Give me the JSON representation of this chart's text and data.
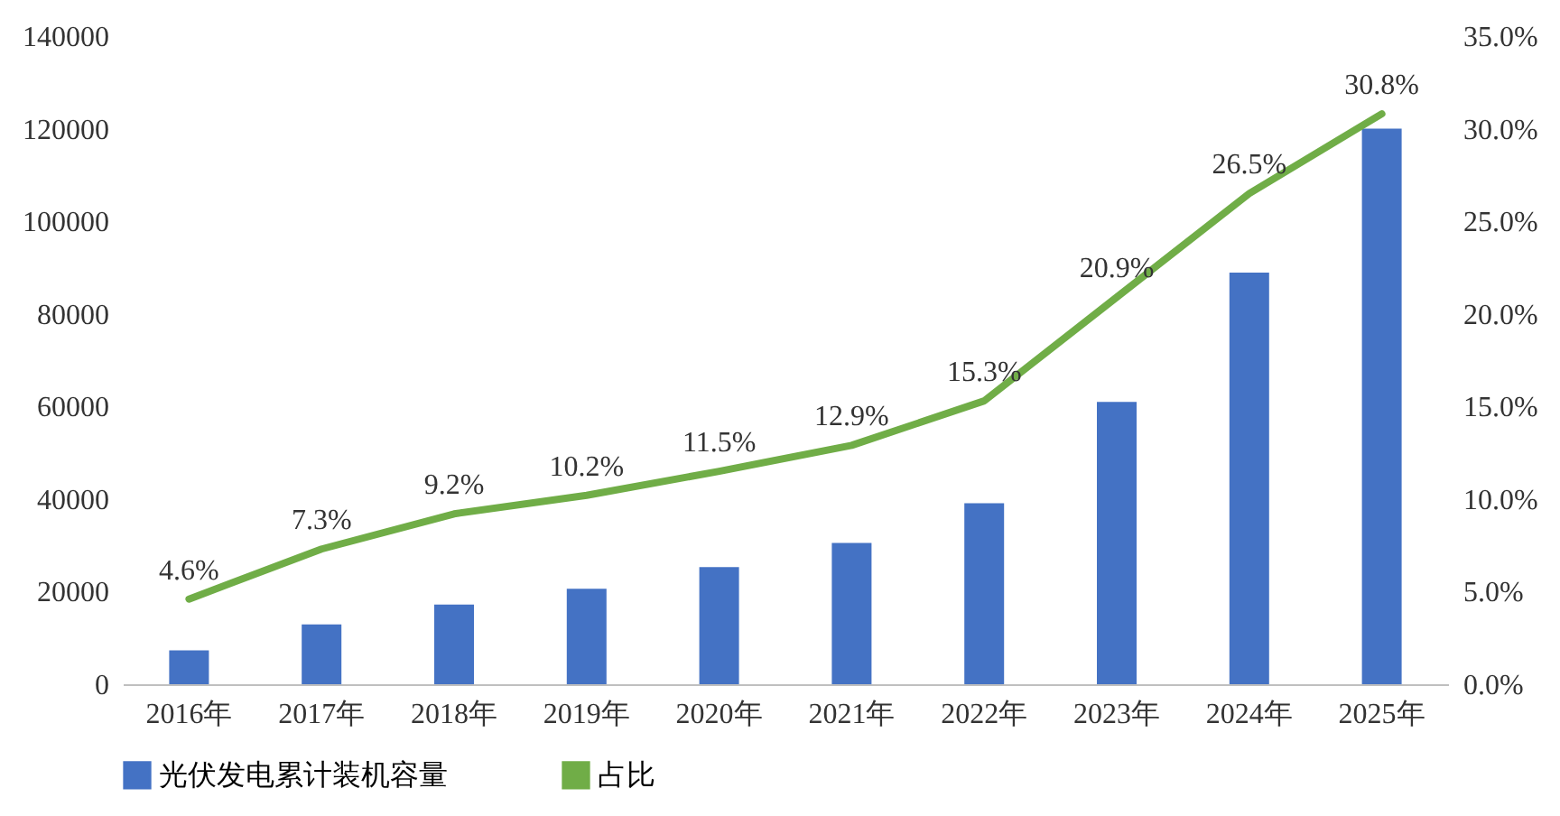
{
  "chart_data": {
    "type": "bar",
    "categories": [
      "2016年",
      "2017年",
      "2018年",
      "2019年",
      "2020年",
      "2021年",
      "2022年",
      "2023年",
      "2024年",
      "2025年"
    ],
    "series": [
      {
        "name": "光伏发电累计装机容量",
        "type": "bar",
        "color": "#4472c4",
        "values": [
          7300,
          12900,
          17200,
          20600,
          25300,
          30500,
          39100,
          61000,
          88900,
          120000
        ]
      },
      {
        "name": "占比",
        "type": "line",
        "axis": "y2",
        "color": "#70ad47",
        "values": [
          4.6,
          7.3,
          9.2,
          10.2,
          11.5,
          12.9,
          15.3,
          20.9,
          26.5,
          30.8
        ],
        "value_labels": [
          "4.6%",
          "7.3%",
          "9.2%",
          "10.2%",
          "11.5%",
          "12.9%",
          "15.3%",
          "20.9%",
          "26.5%",
          "30.8%"
        ]
      }
    ],
    "ylim": [
      0,
      140000
    ],
    "yticks": [
      0,
      20000,
      40000,
      60000,
      80000,
      100000,
      120000,
      140000
    ],
    "y2lim": [
      0,
      35
    ],
    "y2ticks": [
      {
        "value": 0,
        "label": "0.0%"
      },
      {
        "value": 5,
        "label": "5.0%"
      },
      {
        "value": 10,
        "label": "10.0%"
      },
      {
        "value": 15,
        "label": "15.0%"
      },
      {
        "value": 20,
        "label": "20.0%"
      },
      {
        "value": 25,
        "label": "25.0%"
      },
      {
        "value": 30,
        "label": "30.0%"
      },
      {
        "value": 35,
        "label": "35.0%"
      }
    ],
    "legend": "bottom",
    "grid": false
  }
}
